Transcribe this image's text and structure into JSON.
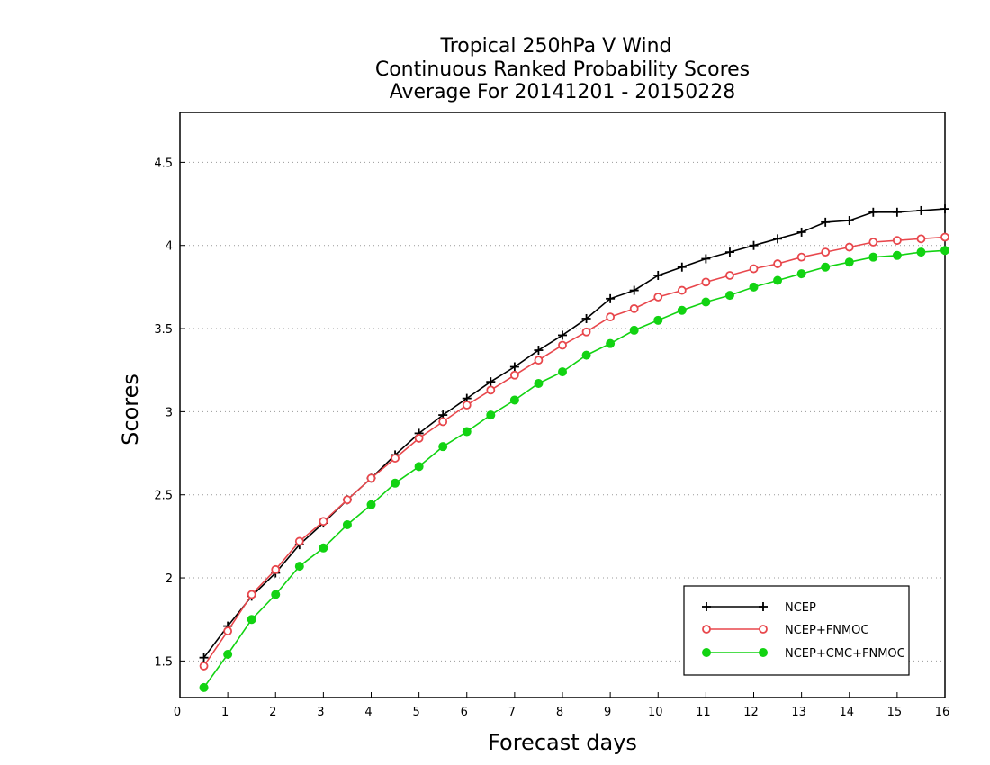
{
  "chart_data": {
    "type": "line",
    "title": [
      "Tropical 250hPa V Wind",
      "Continuous Ranked Probability Scores",
      "Average For 20141201 - 20150228"
    ],
    "xlabel": "Forecast days",
    "ylabel": "Scores",
    "xlim": [
      0,
      16
    ],
    "ylim": [
      1.28,
      4.8
    ],
    "xticks": [
      0,
      1,
      2,
      3,
      4,
      5,
      6,
      7,
      8,
      9,
      10,
      11,
      12,
      13,
      14,
      15,
      16
    ],
    "yticks": [
      1.5,
      2,
      2.5,
      3,
      3.5,
      4,
      4.5
    ],
    "ytick_labels": [
      "1.5",
      "2",
      "2.5",
      "3",
      "3.5",
      "4",
      "4.5"
    ],
    "grid": "horizontal-dotted",
    "legend_position": "bottom-right",
    "x": [
      0.5,
      1,
      1.5,
      2,
      2.5,
      3,
      3.5,
      4,
      4.5,
      5,
      5.5,
      6,
      6.5,
      7,
      7.5,
      8,
      8.5,
      9,
      9.5,
      10,
      10.5,
      11,
      11.5,
      12,
      12.5,
      13,
      13.5,
      14,
      14.5,
      15,
      15.5,
      16
    ],
    "series": [
      {
        "name": "NCEP",
        "color": "#000000",
        "marker": "plus",
        "values": [
          1.52,
          1.71,
          1.89,
          2.03,
          2.2,
          2.33,
          2.47,
          2.6,
          2.74,
          2.87,
          2.98,
          3.08,
          3.18,
          3.27,
          3.37,
          3.46,
          3.56,
          3.68,
          3.73,
          3.82,
          3.87,
          3.92,
          3.96,
          4.0,
          4.04,
          4.08,
          4.14,
          4.15,
          4.2,
          4.2,
          4.21,
          4.22
        ]
      },
      {
        "name": "NCEP+FNMOC",
        "color": "#e8474c",
        "marker": "open-circle",
        "values": [
          1.47,
          1.68,
          1.9,
          2.05,
          2.22,
          2.34,
          2.47,
          2.6,
          2.72,
          2.84,
          2.94,
          3.04,
          3.13,
          3.22,
          3.31,
          3.4,
          3.48,
          3.57,
          3.62,
          3.69,
          3.73,
          3.78,
          3.82,
          3.86,
          3.89,
          3.93,
          3.96,
          3.99,
          4.02,
          4.03,
          4.04,
          4.05
        ]
      },
      {
        "name": "NCEP+CMC+FNMOC",
        "color": "#12d312",
        "marker": "filled-circle",
        "values": [
          1.34,
          1.54,
          1.75,
          1.9,
          2.07,
          2.18,
          2.32,
          2.44,
          2.57,
          2.67,
          2.79,
          2.88,
          2.98,
          3.07,
          3.17,
          3.24,
          3.34,
          3.41,
          3.49,
          3.55,
          3.61,
          3.66,
          3.7,
          3.75,
          3.79,
          3.83,
          3.87,
          3.9,
          3.93,
          3.94,
          3.96,
          3.97
        ]
      }
    ]
  }
}
